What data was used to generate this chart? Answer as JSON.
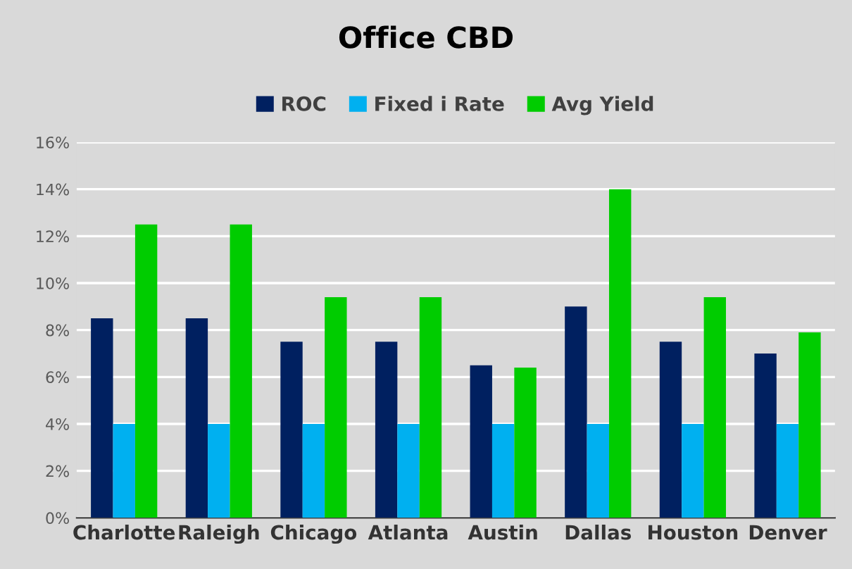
{
  "chart_data": {
    "type": "bar",
    "title": "Office CBD",
    "categories": [
      "Charlotte",
      "Raleigh",
      "Chicago",
      "Atlanta",
      "Austin",
      "Dallas",
      "Houston",
      "Denver"
    ],
    "series": [
      {
        "name": "ROC",
        "color": "#002060",
        "values": [
          8.5,
          8.5,
          7.5,
          7.5,
          6.5,
          9,
          7.5,
          7
        ]
      },
      {
        "name": "Fixed i Rate",
        "color": "#00b0f0",
        "values": [
          4,
          4,
          4,
          4,
          4,
          4,
          4,
          4
        ]
      },
      {
        "name": "Avg Yield",
        "color": "#00cc00",
        "values": [
          12.5,
          12.5,
          9.4,
          9.4,
          6.4,
          14,
          9.4,
          7.9
        ]
      }
    ],
    "ylim": [
      0,
      16
    ],
    "yticks": [
      {
        "value": 0,
        "label": "0%"
      },
      {
        "value": 2,
        "label": "2%"
      },
      {
        "value": 4,
        "label": "4%"
      },
      {
        "value": 6,
        "label": "6%"
      },
      {
        "value": 8,
        "label": "8%"
      },
      {
        "value": 10,
        "label": "10%"
      },
      {
        "value": 12,
        "label": "12%"
      },
      {
        "value": 14,
        "label": "14%"
      },
      {
        "value": 16,
        "label": "16%"
      }
    ],
    "grid": "y",
    "legend": "top"
  }
}
